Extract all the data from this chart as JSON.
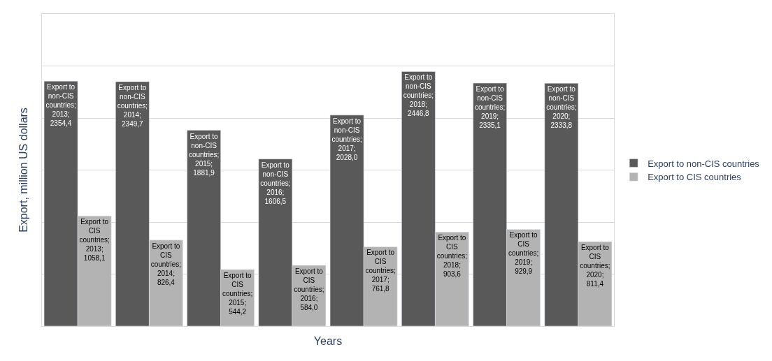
{
  "chart_data": {
    "type": "bar",
    "xlabel": "Years",
    "ylabel": "Export, million US dollars",
    "categories": [
      null,
      null,
      null,
      null,
      null,
      null,
      null,
      null
    ],
    "series": [
      {
        "name": "Export to non-CIS countries",
        "color": "#595959",
        "values": [
          2354.4,
          2349.7,
          1881.9,
          1606.5,
          2028.0,
          2446.8,
          2335.1,
          2333.8
        ],
        "value_labels": [
          "Export to non-CIS countries; 2013; 2354,4",
          "Export to non-CIS countries; 2014; 2349,7",
          "Export to non-CIS countries; 2015; 1881,9",
          "Export to non-CIS countries; 2016; 1606,5",
          "Export to non-CIS countries; 2017; 2028,0",
          "Export to non-CIS countries; 2018; 2446,8",
          "Export to non-CIS countries; 2019; 2335,1",
          "Export to non-CIS countries; 2020; 2333,8"
        ]
      },
      {
        "name": "Export to CIS countries",
        "color": "#b3b3b3",
        "values": [
          1058.1,
          826.4,
          544.2,
          584.0,
          761.8,
          903.6,
          929.9,
          811.4
        ],
        "value_labels": [
          "Export to CIS countries; 2013; 1058,1",
          "Export to CIS countries; 2014; 826,4",
          "Export to CIS countries; 2015; 544,2",
          "Export to CIS countries; 2016; 584,0",
          "Export to CIS countries; 2017; 761,8",
          "Export to CIS countries; 2018; 903,6",
          "Export to CIS countries; 2019; 929,9",
          "Export to CIS countries; 2020; 811,4"
        ]
      }
    ],
    "ylim": [
      0,
      3000
    ],
    "yticks": [
      {
        "value": 0,
        "label": null
      },
      {
        "value": 500,
        "label": null
      },
      {
        "value": 1000,
        "label": null
      },
      {
        "value": 1500,
        "label": null
      },
      {
        "value": 2000,
        "label": null
      },
      {
        "value": 2500,
        "label": null
      },
      {
        "value": 3000,
        "label": null
      }
    ],
    "tick_labels": false,
    "grid": "y",
    "legend": "right"
  }
}
